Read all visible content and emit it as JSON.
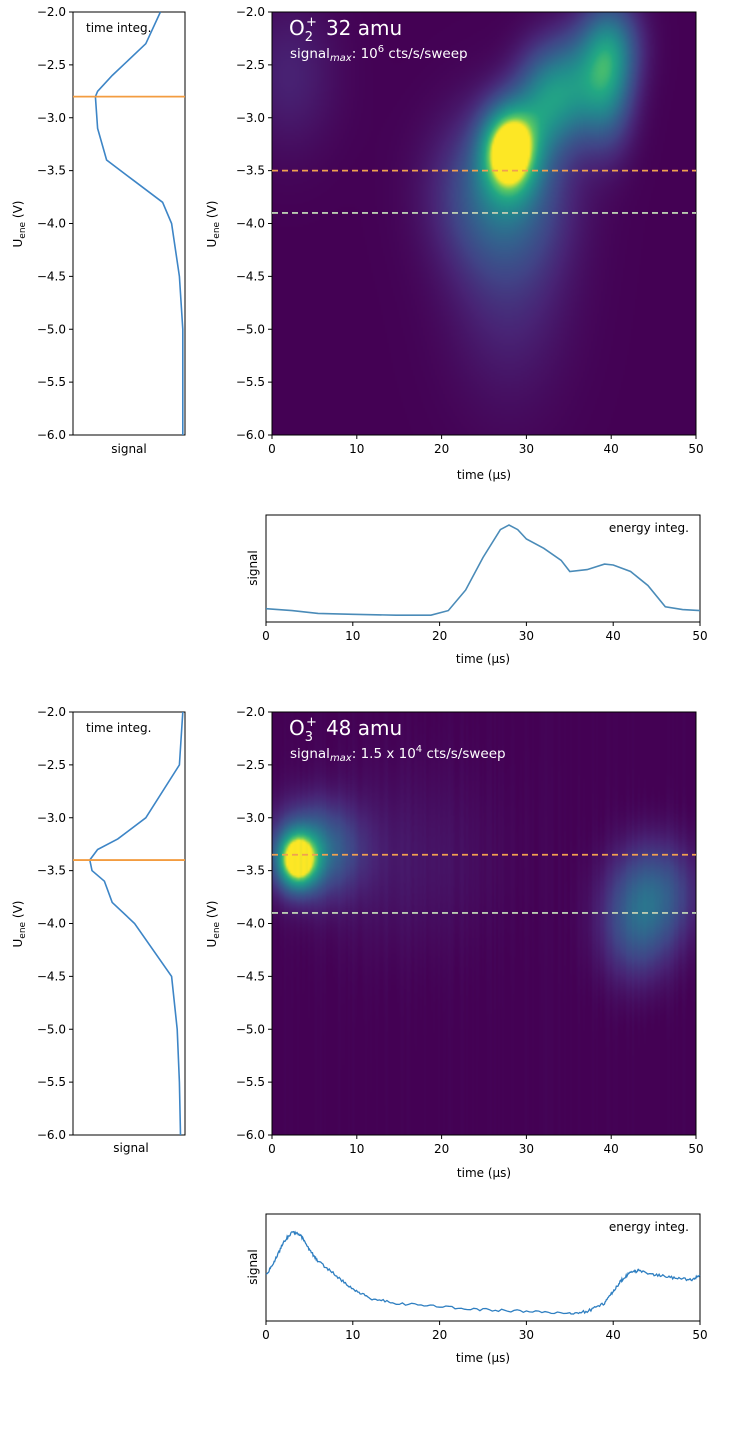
{
  "chart_data": [
    {
      "type": "heatmap",
      "title_species": "O",
      "title_sub": "2",
      "title_sup": "+",
      "title_mass": "32 amu",
      "subtitle_prefix": "signal",
      "subtitle_sub": "max",
      "subtitle_value": ": 10",
      "subtitle_exp": "6",
      "subtitle_units": " cts/s/sweep",
      "xlabel": "time (μs)",
      "ylabel": "U",
      "ylabel_sub": "ene",
      "ylabel_units": " (V)",
      "xlim": [
        0,
        50
      ],
      "ylim": [
        -6.0,
        -2.0
      ],
      "xticks": [
        "0",
        "10",
        "20",
        "30",
        "40",
        "50"
      ],
      "yticks": [
        "−2.0",
        "−2.5",
        "−3.0",
        "−3.5",
        "−4.0",
        "−4.5",
        "−5.0",
        "−5.5",
        "−6.0"
      ],
      "hlines": [
        {
          "y": -3.5,
          "color": "#f0a050",
          "style": "dashed"
        },
        {
          "y": -3.9,
          "color": "#b8c9b0",
          "style": "dashed"
        }
      ],
      "peaks": [
        {
          "t": 28,
          "u": -3.3,
          "amp": 1.0,
          "st": 2.2,
          "su": 0.28
        },
        {
          "t": 27,
          "u": -3.7,
          "amp": 0.4,
          "st": 5.0,
          "su": 0.5
        },
        {
          "t": 28,
          "u": -4.5,
          "amp": 0.15,
          "st": 5.0,
          "su": 0.8
        },
        {
          "t": 32,
          "u": -2.85,
          "amp": 0.45,
          "st": 2.5,
          "su": 0.35
        },
        {
          "t": 35.5,
          "u": -2.7,
          "amp": 0.4,
          "st": 2.5,
          "su": 0.35
        },
        {
          "t": 39.5,
          "u": -2.7,
          "amp": 0.5,
          "st": 2.2,
          "su": 0.4
        },
        {
          "t": 40,
          "u": -2.3,
          "amp": 0.35,
          "st": 2.5,
          "su": 0.3
        },
        {
          "t": 2,
          "u": -2.6,
          "amp": 0.12,
          "st": 4.0,
          "su": 0.5
        }
      ],
      "time_integ": {
        "label": "time integ.",
        "xlabel": "signal",
        "hline": -2.8,
        "hline_color": "#f39c40",
        "u": [
          -2.0,
          -2.3,
          -2.6,
          -2.75,
          -2.8,
          -3.1,
          -3.4,
          -3.6,
          -3.8,
          -4.0,
          -4.5,
          -5.0,
          -5.5,
          -6.0
        ],
        "s": [
          0.78,
          0.65,
          0.35,
          0.22,
          0.2,
          0.22,
          0.3,
          0.55,
          0.8,
          0.88,
          0.95,
          0.98,
          0.98,
          0.98
        ]
      },
      "energy_integ": {
        "label": "energy integ.",
        "ylabel": "signal",
        "xlabel": "time (μs)",
        "xlim": [
          0,
          50
        ],
        "xticks": [
          "0",
          "10",
          "20",
          "30",
          "40",
          "50"
        ],
        "t": [
          0,
          3,
          6,
          10,
          15,
          19,
          21,
          23,
          25,
          27,
          28,
          29,
          30,
          32,
          34,
          35,
          37,
          39,
          40,
          42,
          44,
          46,
          48,
          50
        ],
        "s": [
          0.1,
          0.08,
          0.05,
          0.04,
          0.03,
          0.03,
          0.08,
          0.3,
          0.65,
          0.95,
          1.0,
          0.95,
          0.85,
          0.75,
          0.62,
          0.5,
          0.52,
          0.58,
          0.57,
          0.5,
          0.35,
          0.12,
          0.09,
          0.08
        ]
      }
    },
    {
      "type": "heatmap",
      "title_species": "O",
      "title_sub": "3",
      "title_sup": "+",
      "title_mass": "48 amu",
      "subtitle_prefix": "signal",
      "subtitle_sub": "max",
      "subtitle_value": ": 1.5 x 10",
      "subtitle_exp": "4",
      "subtitle_units": " cts/s/sweep",
      "xlabel": "time (μs)",
      "ylabel": "U",
      "ylabel_sub": "ene",
      "ylabel_units": " (V)",
      "xlim": [
        0,
        50
      ],
      "ylim": [
        -6.0,
        -2.0
      ],
      "xticks": [
        "0",
        "10",
        "20",
        "30",
        "40",
        "50"
      ],
      "yticks": [
        "−2.0",
        "−2.5",
        "−3.0",
        "−3.5",
        "−4.0",
        "−4.5",
        "−5.0",
        "−5.5",
        "−6.0"
      ],
      "hlines": [
        {
          "y": -3.35,
          "color": "#f0a050",
          "style": "dashed"
        },
        {
          "y": -3.9,
          "color": "#b8c9b0",
          "style": "dashed"
        }
      ],
      "peaks": [
        {
          "t": 3,
          "u": -3.4,
          "amp": 1.0,
          "st": 1.6,
          "su": 0.18
        },
        {
          "t": 5,
          "u": -3.3,
          "amp": 0.45,
          "st": 3.5,
          "su": 0.3
        },
        {
          "t": 45,
          "u": -3.7,
          "amp": 0.35,
          "st": 3.5,
          "su": 0.35
        },
        {
          "t": 43,
          "u": -4.1,
          "amp": 0.25,
          "st": 3.0,
          "su": 0.35
        },
        {
          "t": 15,
          "u": -3.4,
          "amp": 0.08,
          "st": 8.0,
          "su": 0.6
        }
      ],
      "time_integ": {
        "label": "time integ.",
        "xlabel": "signal",
        "hline": -3.4,
        "hline_color": "#f39c40",
        "u": [
          -2.0,
          -2.5,
          -3.0,
          -3.2,
          -3.3,
          -3.4,
          -3.5,
          -3.6,
          -3.8,
          -4.0,
          -4.5,
          -5.0,
          -5.5,
          -6.0
        ],
        "s": [
          0.98,
          0.95,
          0.65,
          0.4,
          0.22,
          0.15,
          0.17,
          0.28,
          0.35,
          0.55,
          0.88,
          0.93,
          0.95,
          0.96
        ]
      },
      "energy_integ": {
        "label": "energy integ.",
        "ylabel": "signal",
        "xlabel": "time (μs)",
        "xlim": [
          0,
          50
        ],
        "xticks": [
          "0",
          "10",
          "20",
          "30",
          "40",
          "50"
        ],
        "t": [
          0,
          1,
          2,
          3,
          4,
          5,
          6,
          8,
          10,
          12,
          15,
          20,
          25,
          30,
          35,
          37,
          39,
          40,
          41,
          42,
          43,
          45,
          47,
          49,
          50
        ],
        "s": [
          0.45,
          0.6,
          0.8,
          0.92,
          0.88,
          0.72,
          0.6,
          0.45,
          0.3,
          0.2,
          0.15,
          0.11,
          0.08,
          0.06,
          0.04,
          0.06,
          0.15,
          0.28,
          0.4,
          0.48,
          0.5,
          0.45,
          0.42,
          0.4,
          0.45
        ]
      }
    }
  ]
}
